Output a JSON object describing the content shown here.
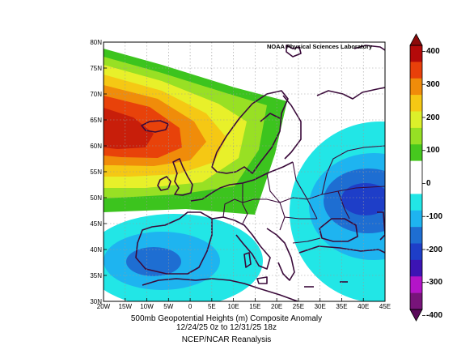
{
  "map": {
    "credit": "NOAA Physical Sciences Laboratory",
    "lat_labels": [
      "80N",
      "75N",
      "70N",
      "65N",
      "60N",
      "55N",
      "50N",
      "45N",
      "40N",
      "35N",
      "30N"
    ],
    "lon_labels": [
      "20W",
      "15W",
      "10W",
      "5W",
      "0",
      "5E",
      "10E",
      "15E",
      "20E",
      "25E",
      "30E",
      "35E",
      "40E",
      "45E"
    ],
    "extent": {
      "lon_min": -20,
      "lon_max": 45,
      "lat_min": 30,
      "lat_max": 80
    },
    "grid": true,
    "title_line1": "500mb Geopotential Heights (m)   Composite Anomaly",
    "title_line2": "12/24/25 0z  to 12/31/25 18z",
    "source": "NCEP/NCAR Reanalysis",
    "anomaly_centers": [
      {
        "kind": "positive",
        "lon": -17,
        "lat": 62,
        "value": 400
      },
      {
        "kind": "negative",
        "lon": 38,
        "lat": 49,
        "value": -200
      },
      {
        "kind": "negative",
        "lon": -8,
        "lat": 38,
        "value": -200
      }
    ]
  },
  "colorbar": {
    "labels": [
      "400",
      "300",
      "200",
      "100",
      "0",
      "-100",
      "-200",
      "-300",
      "-400"
    ],
    "colors": [
      "#b40a0a",
      "#e8400a",
      "#f08c0a",
      "#f5c814",
      "#dcf02a",
      "#96e024",
      "#46c81e",
      "#ffffff",
      "#ffffff",
      "#22e6e6",
      "#1eb4f0",
      "#1e6ed2",
      "#1e3ec8",
      "#3c14b4",
      "#b414c8",
      "#78147a"
    ]
  }
}
